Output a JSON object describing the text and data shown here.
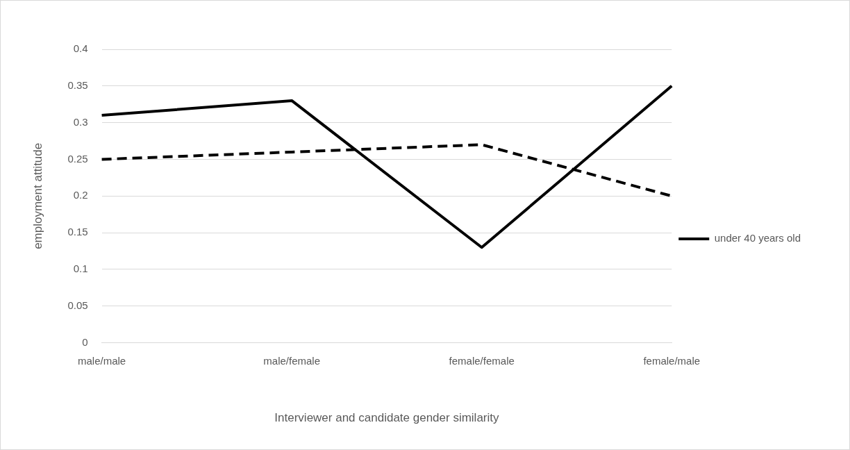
{
  "chart_data": {
    "type": "line",
    "xlabel": "Interviewer and candidate gender similarity",
    "ylabel": "employment attitude",
    "categories": [
      "male/male",
      "male/female",
      "female/female",
      "female/male"
    ],
    "series": [
      {
        "color": "#000000",
        "values": [
          0.31,
          0.33,
          0.13,
          0.35
        ],
        "line_style": "solid"
      },
      {
        "name": "under 40 years old",
        "color": "#000000",
        "values": [
          0.25,
          0.26,
          0.27,
          0.2
        ],
        "line_style": "dashed"
      }
    ],
    "ylim": [
      0,
      0.4
    ],
    "yticks": [
      0,
      0.05,
      0.1,
      0.15,
      0.2,
      0.25,
      0.3,
      0.35,
      0.4
    ],
    "grid": "y",
    "legend": "right",
    "marker": "none"
  }
}
